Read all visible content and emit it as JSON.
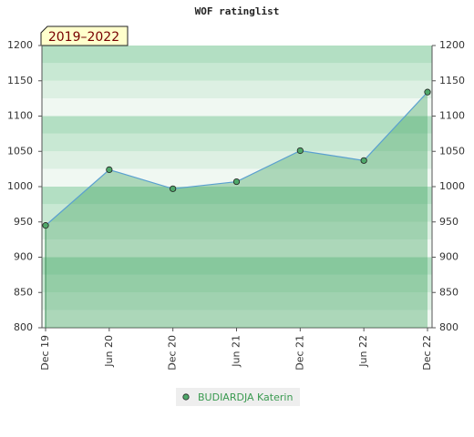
{
  "chart_data": {
    "type": "area",
    "title": "WOF ratinglist",
    "period": "2019–2022",
    "categories": [
      "Dec 19",
      "Jun 20",
      "Dec 20",
      "Jun 21",
      "Dec 21",
      "Jun 22",
      "Dec 22"
    ],
    "series": [
      {
        "name": "BUDIARDJA Katerin",
        "color": "#5aa0d0",
        "values": [
          945,
          1024,
          997,
          1007,
          1051,
          1037,
          1134
        ]
      }
    ],
    "ylim": [
      800,
      1200
    ],
    "yticks": [
      800,
      850,
      900,
      950,
      1000,
      1050,
      1100,
      1150,
      1200
    ]
  }
}
